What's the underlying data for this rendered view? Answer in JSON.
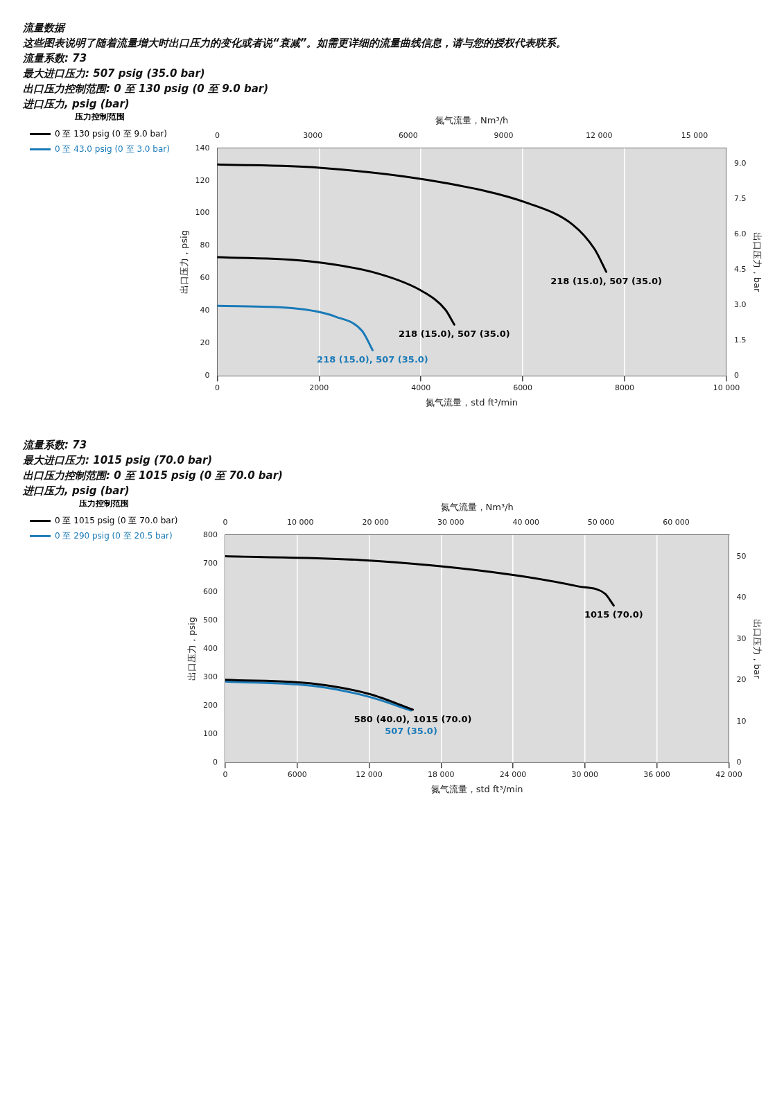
{
  "chart_data": [
    {
      "type": "line",
      "annotations": [
        "流量数据",
        "这些图表说明了随着流量增大时出口压力的变化或者说“衰减”。如需更详细的流量曲线信息，请与您的授权代表联系。",
        "流量系数: 73",
        "最大进口压力: 507 psig (35.0 bar)",
        "出口压力控制范围: 0 至 130 psig (0 至 9.0 bar)",
        "进口压力, psig (bar)",
        {
          "text": "218 (15.0), 507 (35.0)",
          "x": 7640,
          "y": 64
        },
        {
          "text": "218 (15.0), 507 (35.0)",
          "x": 4655,
          "y": 31.5
        },
        {
          "text": "218 (15.0), 507 (35.0)",
          "x": 3050,
          "y": 15.8
        }
      ],
      "xlabel": "氮气流量，std ft³/min",
      "x2label": "氮气流量，Nm³/h",
      "ylabel": "出口压力，psig",
      "y2label": "出口压力，bar",
      "legend_title": "压力控制范围",
      "legend": "left",
      "grid": "x",
      "marker": "none",
      "line_style": "solid",
      "xlim": [
        0,
        10000
      ],
      "xticks": [
        0,
        2000,
        4000,
        6000,
        8000,
        {
          "value": 10000,
          "label": "10 000"
        }
      ],
      "x2lim": [
        0,
        16000
      ],
      "x2ticks": [
        0,
        3000,
        6000,
        9000,
        {
          "value": 12000,
          "label": "12 000"
        },
        {
          "value": 15000,
          "label": "15 000"
        }
      ],
      "ylim": [
        0,
        140
      ],
      "yticks": [
        0,
        20,
        40,
        60,
        80,
        100,
        120,
        140
      ],
      "y2lim": [
        0,
        9.66
      ],
      "y2ticks": [
        0,
        1.5,
        {
          "value": 3,
          "label": "3.0"
        },
        4.5,
        {
          "value": 6,
          "label": "6.0"
        },
        7.5,
        {
          "value": 9,
          "label": "9.0"
        }
      ],
      "series": [
        {
          "name": "0 至 130 psig (0 至 9.0 bar)",
          "color": "#000000",
          "x": [
            0,
            2000,
            4400,
            6120,
            6980,
            7410,
            7640
          ],
          "values": [
            130,
            128,
            119,
            106,
            93,
            78,
            64
          ]
        },
        {
          "color": "#000000",
          "x": [
            0,
            1810,
            3190,
            4050,
            4480,
            4655
          ],
          "values": [
            73,
            70.4,
            62.6,
            51.6,
            40.7,
            31.5
          ]
        },
        {
          "name": "0 至 43.0 psig (0 至 3.0 bar)",
          "color": "#1a7ab8",
          "x": [
            0,
            1465,
            2330,
            2845,
            3050
          ],
          "values": [
            43,
            41.6,
            36.3,
            27.6,
            15.8
          ]
        }
      ]
    },
    {
      "type": "line",
      "annotations": [
        "流量系数: 73",
        "最大进口压力: 1015 psig (70.0 bar)",
        "出口压力控制范围: 0 至 1015 psig (0 至 70.0 bar)",
        "进口压力, psig (bar)",
        {
          "text": "1015 (70.0)",
          "x": 32400,
          "y": 552
        },
        {
          "text": "580 (40.0), 1015 (70.0)",
          "x": 15650,
          "y": 186
        },
        {
          "text": "507 (35.0)",
          "x": 15500,
          "y": 183
        }
      ],
      "xlabel": "氮气流量，std ft³/min",
      "x2label": "氮气流量，Nm³/h",
      "ylabel": "出口压力，psig",
      "y2label": "出口压力，bar",
      "legend_title": "压力控制范围",
      "legend": "left",
      "grid": "x",
      "marker": "none",
      "line_style": "solid",
      "xlim": [
        0,
        42000
      ],
      "xticks": [
        0,
        6000,
        {
          "value": 12000,
          "label": "12 000"
        },
        {
          "value": 18000,
          "label": "18 000"
        },
        {
          "value": 24000,
          "label": "24 000"
        },
        {
          "value": 30000,
          "label": "30 000"
        },
        {
          "value": 36000,
          "label": "36 000"
        },
        {
          "value": 42000,
          "label": "42 000"
        }
      ],
      "x2lim": [
        0,
        67000
      ],
      "x2ticks": [
        0,
        {
          "value": 10000,
          "label": "10 000"
        },
        {
          "value": 20000,
          "label": "20 000"
        },
        {
          "value": 30000,
          "label": "30 000"
        },
        {
          "value": 40000,
          "label": "40 000"
        },
        {
          "value": 50000,
          "label": "50 000"
        },
        {
          "value": 60000,
          "label": "60 000"
        }
      ],
      "ylim": [
        0,
        800
      ],
      "yticks": [
        0,
        100,
        200,
        300,
        400,
        500,
        600,
        700,
        800
      ],
      "y2lim": [
        0,
        55.2
      ],
      "y2ticks": [
        0,
        10,
        20,
        30,
        40,
        50
      ],
      "series": [
        {
          "name": "0 至 1015 psig (0 至 70.0 bar)",
          "color": "#000000",
          "x": [
            0,
            11280,
            22200,
            29480,
            31660,
            32400
          ],
          "values": [
            725,
            712,
            670,
            619,
            594,
            552
          ]
        },
        {
          "color": "#000000",
          "x": [
            0,
            7640,
            12010,
            15650
          ],
          "values": [
            291,
            276,
            241,
            186
          ]
        },
        {
          "name": "0 至 290 psig (0 至 20.5 bar)",
          "color": "#1a7ab8",
          "x": [
            0,
            7640,
            12010,
            15500
          ],
          "values": [
            285,
            268,
            231,
            183
          ]
        }
      ]
    }
  ]
}
